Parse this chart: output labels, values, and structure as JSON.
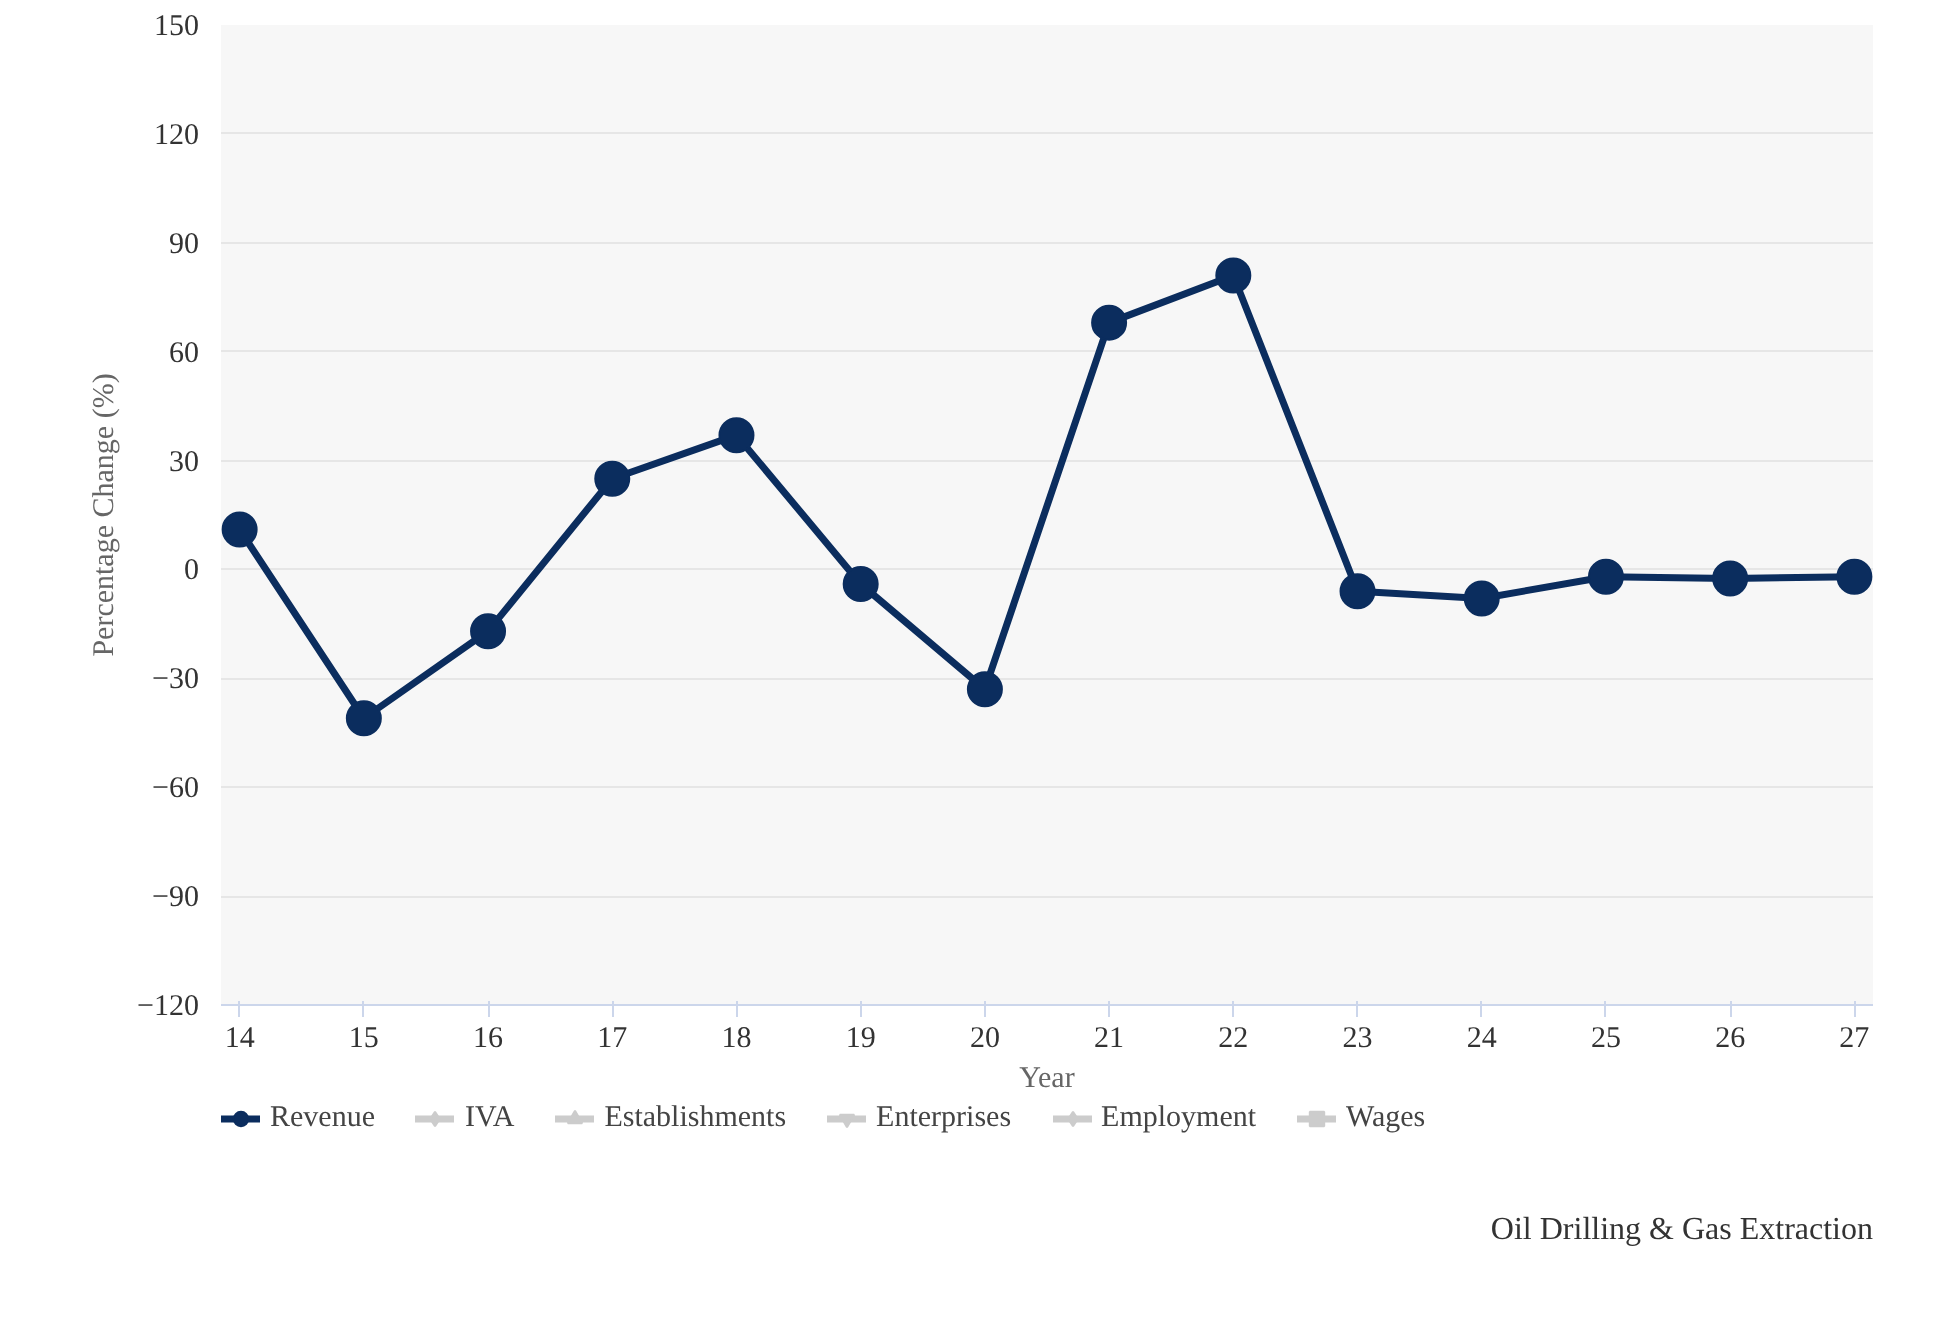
{
  "chart_data": {
    "type": "line",
    "xlabel": "Year",
    "ylabel": "Percentage Change (%)",
    "x": [
      14,
      15,
      16,
      17,
      18,
      19,
      20,
      21,
      22,
      23,
      24,
      25,
      26,
      27
    ],
    "series": [
      {
        "name": "Revenue",
        "color": "#0b2d5e",
        "values": [
          11,
          -41,
          -17,
          25,
          37,
          -4,
          -33,
          68,
          81,
          -6,
          -8,
          -2,
          -2.5,
          -2
        ]
      },
      {
        "name": "IVA",
        "color": "#cccccc",
        "marker": "diamond",
        "values": [
          null,
          null,
          null,
          null,
          null,
          null,
          null,
          null,
          null,
          null,
          null,
          null,
          null,
          null
        ]
      },
      {
        "name": "Establishments",
        "color": "#cccccc",
        "marker": "triangle",
        "values": [
          null,
          null,
          null,
          null,
          null,
          null,
          null,
          null,
          null,
          null,
          null,
          null,
          null,
          null
        ]
      },
      {
        "name": "Enterprises",
        "color": "#cccccc",
        "marker": "inverted_triangle",
        "values": [
          null,
          null,
          null,
          null,
          null,
          null,
          null,
          null,
          null,
          null,
          null,
          null,
          null,
          null
        ]
      },
      {
        "name": "Employment",
        "color": "#cccccc",
        "marker": "diamond",
        "values": [
          null,
          null,
          null,
          null,
          null,
          null,
          null,
          null,
          null,
          null,
          null,
          null,
          null,
          null
        ]
      },
      {
        "name": "Wages",
        "color": "#cccccc",
        "marker": "square",
        "values": [
          null,
          null,
          null,
          null,
          null,
          null,
          null,
          null,
          null,
          null,
          null,
          null,
          null,
          null
        ]
      }
    ],
    "xlim": [
      13.85,
      27.15
    ],
    "xticks": [
      14,
      15,
      16,
      17,
      18,
      19,
      20,
      21,
      22,
      23,
      24,
      25,
      26,
      27
    ],
    "ylim": [
      -120,
      150
    ],
    "yticks": [
      -120,
      -90,
      -60,
      -30,
      0,
      30,
      60,
      90,
      120,
      150
    ],
    "grid": "y",
    "legend": "bottom",
    "marker": "circle",
    "line_style": "solid",
    "annotations": [
      "Oil Drilling & Gas Extraction"
    ]
  }
}
